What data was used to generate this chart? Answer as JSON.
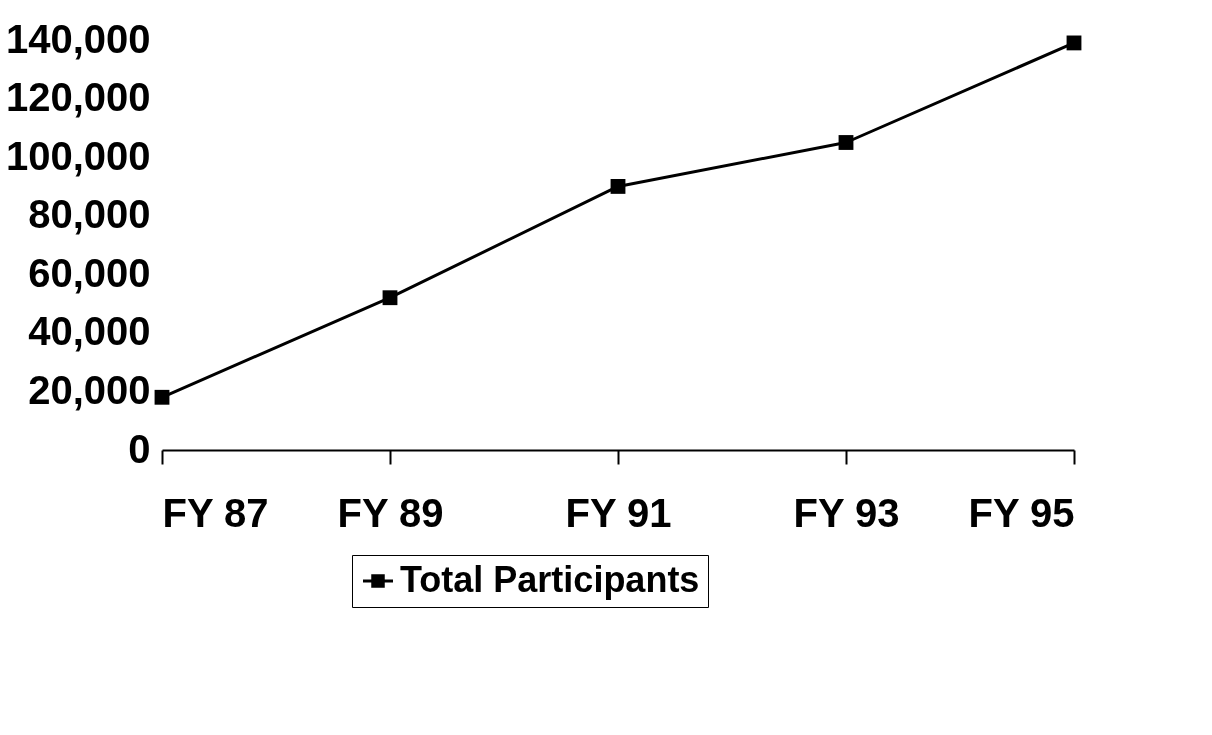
{
  "chart_data": {
    "type": "line",
    "categories": [
      "FY 87",
      "FY 89",
      "FY 91",
      "FY 93",
      "FY 95"
    ],
    "series": [
      {
        "name": "Total Participants",
        "color": "#000000",
        "values": [
          18000,
          52000,
          90000,
          105000,
          139000
        ]
      }
    ],
    "ylim": [
      0,
      140000
    ],
    "yticks": [
      {
        "value": 0,
        "label": "0"
      },
      {
        "value": 20000,
        "label": "20,000"
      },
      {
        "value": 40000,
        "label": "40,000"
      },
      {
        "value": 60000,
        "label": "60,000"
      },
      {
        "value": 80000,
        "label": "80,000"
      },
      {
        "value": 100000,
        "label": "100,000"
      },
      {
        "value": 120000,
        "label": "120,000"
      },
      {
        "value": 140000,
        "label": "140,000"
      }
    ],
    "grid": false,
    "legend": "bottom",
    "marker": "square",
    "line_style": "solid"
  }
}
